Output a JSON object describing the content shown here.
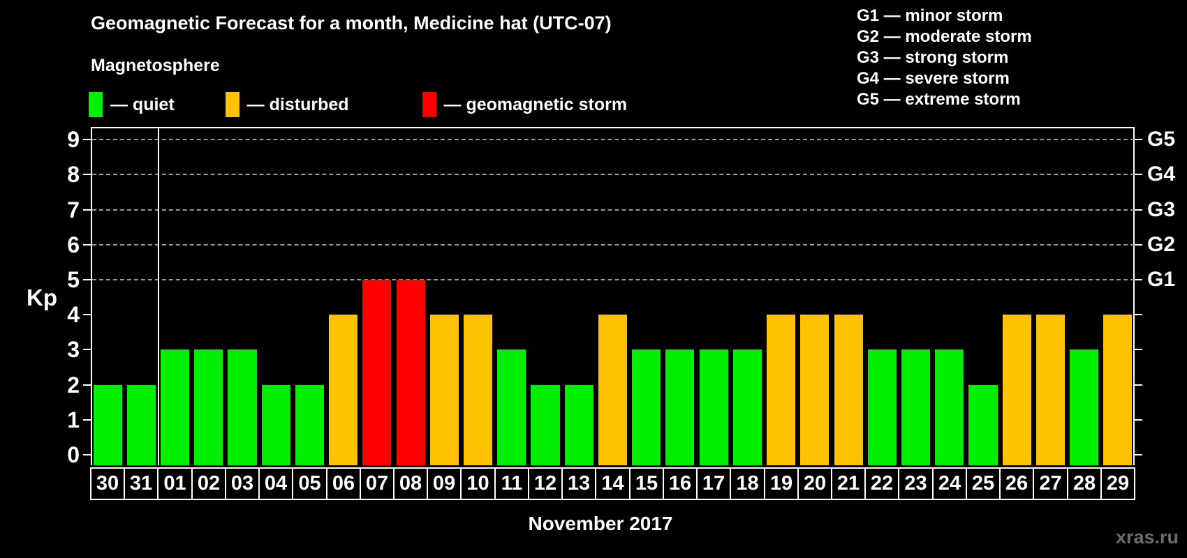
{
  "header": {
    "title": "Geomagnetic Forecast for a month, Medicine hat (UTC-07)",
    "subtitle": "Magnetosphere"
  },
  "legend": {
    "items": [
      {
        "key": "quiet",
        "label": "— quiet",
        "color": "#00ee00"
      },
      {
        "key": "disturbed",
        "label": "— disturbed",
        "color": "#ffc200"
      },
      {
        "key": "storm",
        "label": "— geomagnetic storm",
        "color": "#ff0000"
      }
    ]
  },
  "g_scale_legend": {
    "lines": [
      "G1 — minor storm",
      "G2 — moderate storm",
      "G3 — strong storm",
      "G4 — severe storm",
      "G5 — extreme storm"
    ]
  },
  "chart_data": {
    "type": "bar",
    "title": "Geomagnetic Forecast for a month, Medicine hat (UTC-07)",
    "ylabel": "Kp",
    "xlabel": "November 2017",
    "ylim": [
      0,
      9.36
    ],
    "yticks": [
      0,
      1,
      2,
      3,
      4,
      5,
      6,
      7,
      8,
      9
    ],
    "gridlines_at": [
      5,
      6,
      7,
      8,
      9
    ],
    "right_axis_labels": {
      "5": "G1",
      "6": "G2",
      "7": "G3",
      "8": "G4",
      "9": "G5"
    },
    "legend_position": "top-left",
    "grid": "dashed horizontal above Kp 5 only",
    "categories": [
      "30",
      "31",
      "01",
      "02",
      "03",
      "04",
      "05",
      "06",
      "07",
      "08",
      "09",
      "10",
      "11",
      "12",
      "13",
      "14",
      "15",
      "16",
      "17",
      "18",
      "19",
      "20",
      "21",
      "22",
      "23",
      "24",
      "25",
      "26",
      "27",
      "28",
      "29"
    ],
    "values": [
      2,
      2,
      3,
      3,
      3,
      2,
      2,
      4,
      5,
      5,
      4,
      4,
      3,
      2,
      2,
      4,
      3,
      3,
      3,
      3,
      4,
      4,
      4,
      3,
      3,
      3,
      2,
      4,
      4,
      3,
      4
    ],
    "statuses": [
      "quiet",
      "quiet",
      "quiet",
      "quiet",
      "quiet",
      "quiet",
      "quiet",
      "disturbed",
      "storm",
      "storm",
      "disturbed",
      "disturbed",
      "quiet",
      "quiet",
      "quiet",
      "disturbed",
      "quiet",
      "quiet",
      "quiet",
      "quiet",
      "disturbed",
      "disturbed",
      "disturbed",
      "quiet",
      "quiet",
      "quiet",
      "quiet",
      "disturbed",
      "disturbed",
      "quiet",
      "disturbed"
    ],
    "status_colors": {
      "quiet": "#00ee00",
      "disturbed": "#ffc200",
      "storm": "#ff0000"
    },
    "month_separator_after_index": 1
  },
  "footer": {
    "xaxis_label": "November 2017",
    "watermark": "xras.ru"
  }
}
